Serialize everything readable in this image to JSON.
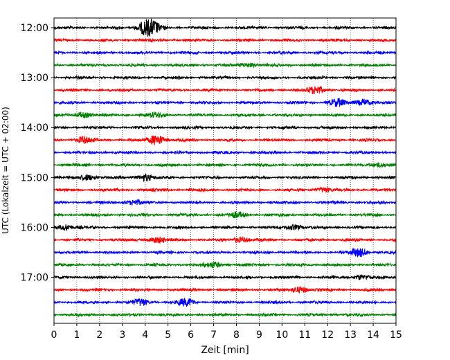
{
  "chart_data": {
    "type": "line",
    "title": "",
    "xlabel": "Zeit  [min]",
    "ylabel": "UTC (Lokalzeit = UTC + 02:00)",
    "xlim": [
      0,
      15
    ],
    "x_ticks": [
      "0",
      "1",
      "2",
      "3",
      "4",
      "5",
      "6",
      "7",
      "8",
      "9",
      "10",
      "11",
      "12",
      "13",
      "14",
      "15"
    ],
    "y_tick_labels": [
      "12:00",
      "13:00",
      "14:00",
      "15:00",
      "16:00",
      "17:00"
    ],
    "grid": "vertical-dotted",
    "trace_interval_min": 15,
    "trace_colors": [
      "#000000",
      "#ff0000",
      "#0000ff",
      "#008000"
    ],
    "traces": [
      {
        "start": "12:00",
        "color": "#000000",
        "events": [
          {
            "t": 4.0,
            "amp": 0.9
          },
          {
            "t": 4.35,
            "amp": 0.8
          }
        ]
      },
      {
        "start": "12:15",
        "color": "#ff0000",
        "events": []
      },
      {
        "start": "12:30",
        "color": "#0000ff",
        "events": []
      },
      {
        "start": "12:45",
        "color": "#008000",
        "events": [
          {
            "t": 8.5,
            "amp": 0.35
          }
        ]
      },
      {
        "start": "13:00",
        "color": "#000000",
        "events": []
      },
      {
        "start": "13:15",
        "color": "#ff0000",
        "events": [
          {
            "t": 11.5,
            "amp": 0.6
          }
        ]
      },
      {
        "start": "13:30",
        "color": "#0000ff",
        "events": [
          {
            "t": 12.4,
            "amp": 0.55
          },
          {
            "t": 13.6,
            "amp": 0.5
          }
        ]
      },
      {
        "start": "13:45",
        "color": "#008000",
        "events": [
          {
            "t": 1.3,
            "amp": 0.4
          },
          {
            "t": 4.5,
            "amp": 0.35
          }
        ]
      },
      {
        "start": "14:00",
        "color": "#000000",
        "events": []
      },
      {
        "start": "14:15",
        "color": "#ff0000",
        "events": [
          {
            "t": 1.3,
            "amp": 0.45
          },
          {
            "t": 4.5,
            "amp": 0.8
          }
        ]
      },
      {
        "start": "14:30",
        "color": "#0000ff",
        "events": []
      },
      {
        "start": "14:45",
        "color": "#008000",
        "events": [
          {
            "t": 14.2,
            "amp": 0.3
          }
        ]
      },
      {
        "start": "15:00",
        "color": "#000000",
        "events": [
          {
            "t": 1.5,
            "amp": 0.45
          },
          {
            "t": 4.0,
            "amp": 0.5
          }
        ]
      },
      {
        "start": "15:15",
        "color": "#ff0000",
        "events": [
          {
            "t": 11.8,
            "amp": 0.35
          }
        ]
      },
      {
        "start": "15:30",
        "color": "#0000ff",
        "events": [
          {
            "t": 3.5,
            "amp": 0.35
          }
        ]
      },
      {
        "start": "15:45",
        "color": "#008000",
        "events": [
          {
            "t": 8.0,
            "amp": 0.4
          }
        ]
      },
      {
        "start": "16:00",
        "color": "#000000",
        "events": [
          {
            "t": 0.5,
            "amp": 0.45
          },
          {
            "t": 10.5,
            "amp": 0.4
          }
        ]
      },
      {
        "start": "16:15",
        "color": "#ff0000",
        "events": [
          {
            "t": 4.5,
            "amp": 0.45
          },
          {
            "t": 8.2,
            "amp": 0.4
          }
        ]
      },
      {
        "start": "16:30",
        "color": "#0000ff",
        "events": [
          {
            "t": 13.4,
            "amp": 0.65
          }
        ]
      },
      {
        "start": "16:45",
        "color": "#008000",
        "events": [
          {
            "t": 7.0,
            "amp": 0.4
          }
        ]
      },
      {
        "start": "17:00",
        "color": "#000000",
        "events": [
          {
            "t": 13.5,
            "amp": 0.35
          }
        ]
      },
      {
        "start": "17:15",
        "color": "#ff0000",
        "events": [
          {
            "t": 10.8,
            "amp": 0.45
          }
        ]
      },
      {
        "start": "17:30",
        "color": "#0000ff",
        "events": [
          {
            "t": 3.8,
            "amp": 0.5
          },
          {
            "t": 5.8,
            "amp": 0.55
          }
        ]
      },
      {
        "start": "17:45",
        "color": "#008000",
        "events": []
      }
    ]
  }
}
